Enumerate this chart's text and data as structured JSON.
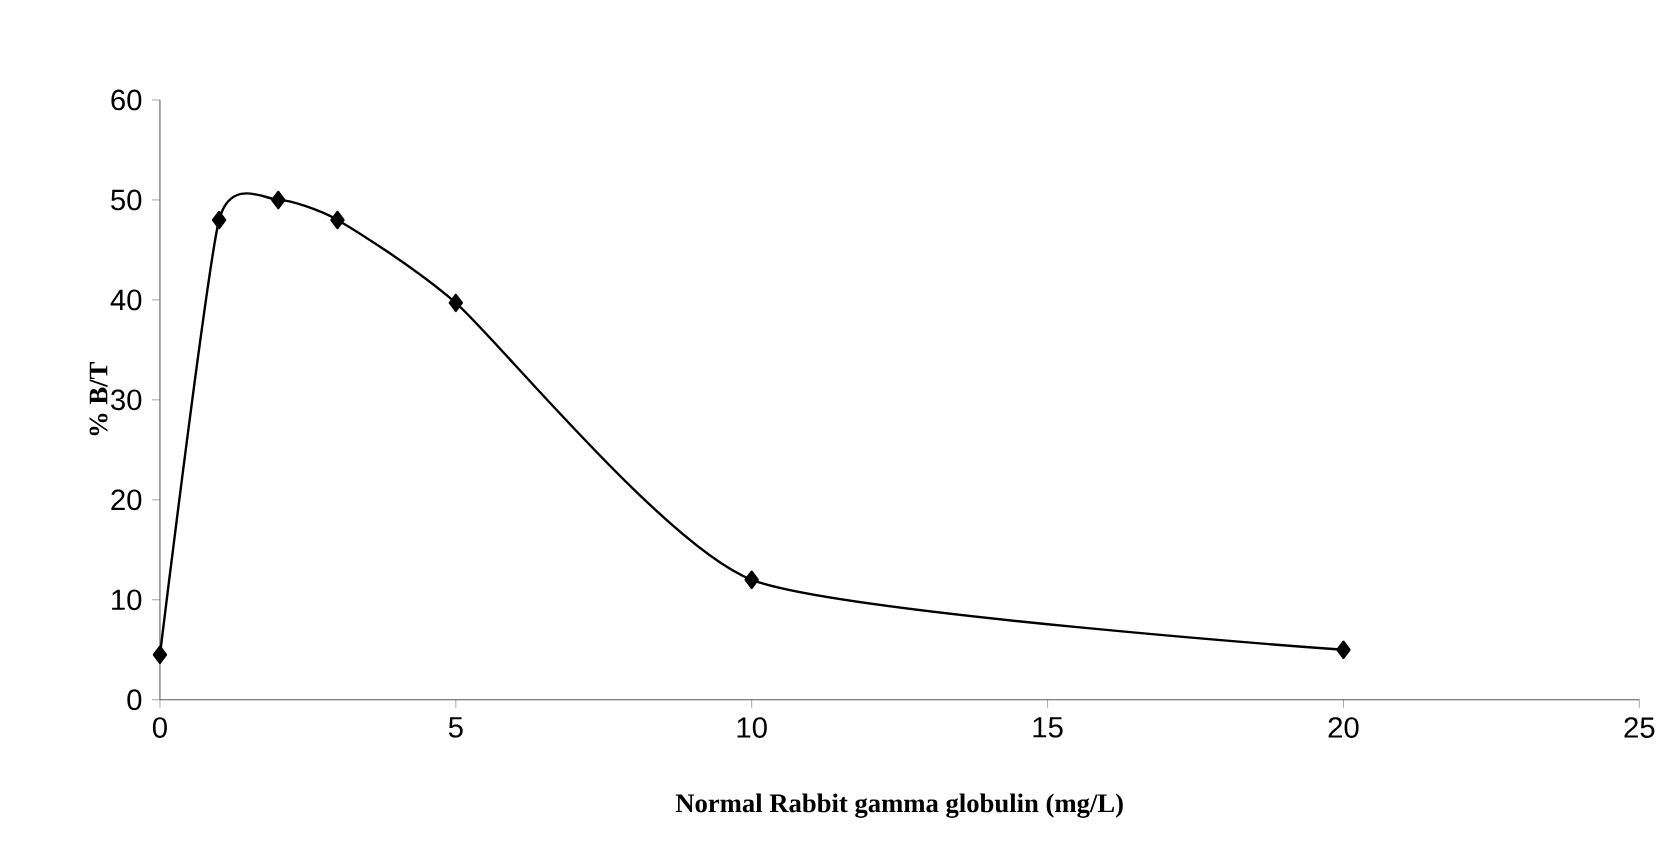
{
  "chart_data": {
    "type": "line",
    "xlabel": "Normal Rabbit gamma globulin (mg/L)",
    "ylabel": "% B/T",
    "x": [
      0,
      1,
      2,
      3,
      5,
      10,
      20
    ],
    "series": [
      {
        "color": "#000000",
        "values": [
          4.5,
          48,
          50,
          48,
          39.7,
          12,
          5
        ]
      }
    ],
    "xlim": [
      0,
      25
    ],
    "xticks": [
      0,
      5,
      10,
      15,
      20,
      25
    ],
    "ylim": [
      0,
      60
    ],
    "yticks": [
      0,
      10,
      20,
      30,
      40,
      50,
      60
    ],
    "marker": "diamond",
    "line_style": "solid",
    "grid": false
  }
}
